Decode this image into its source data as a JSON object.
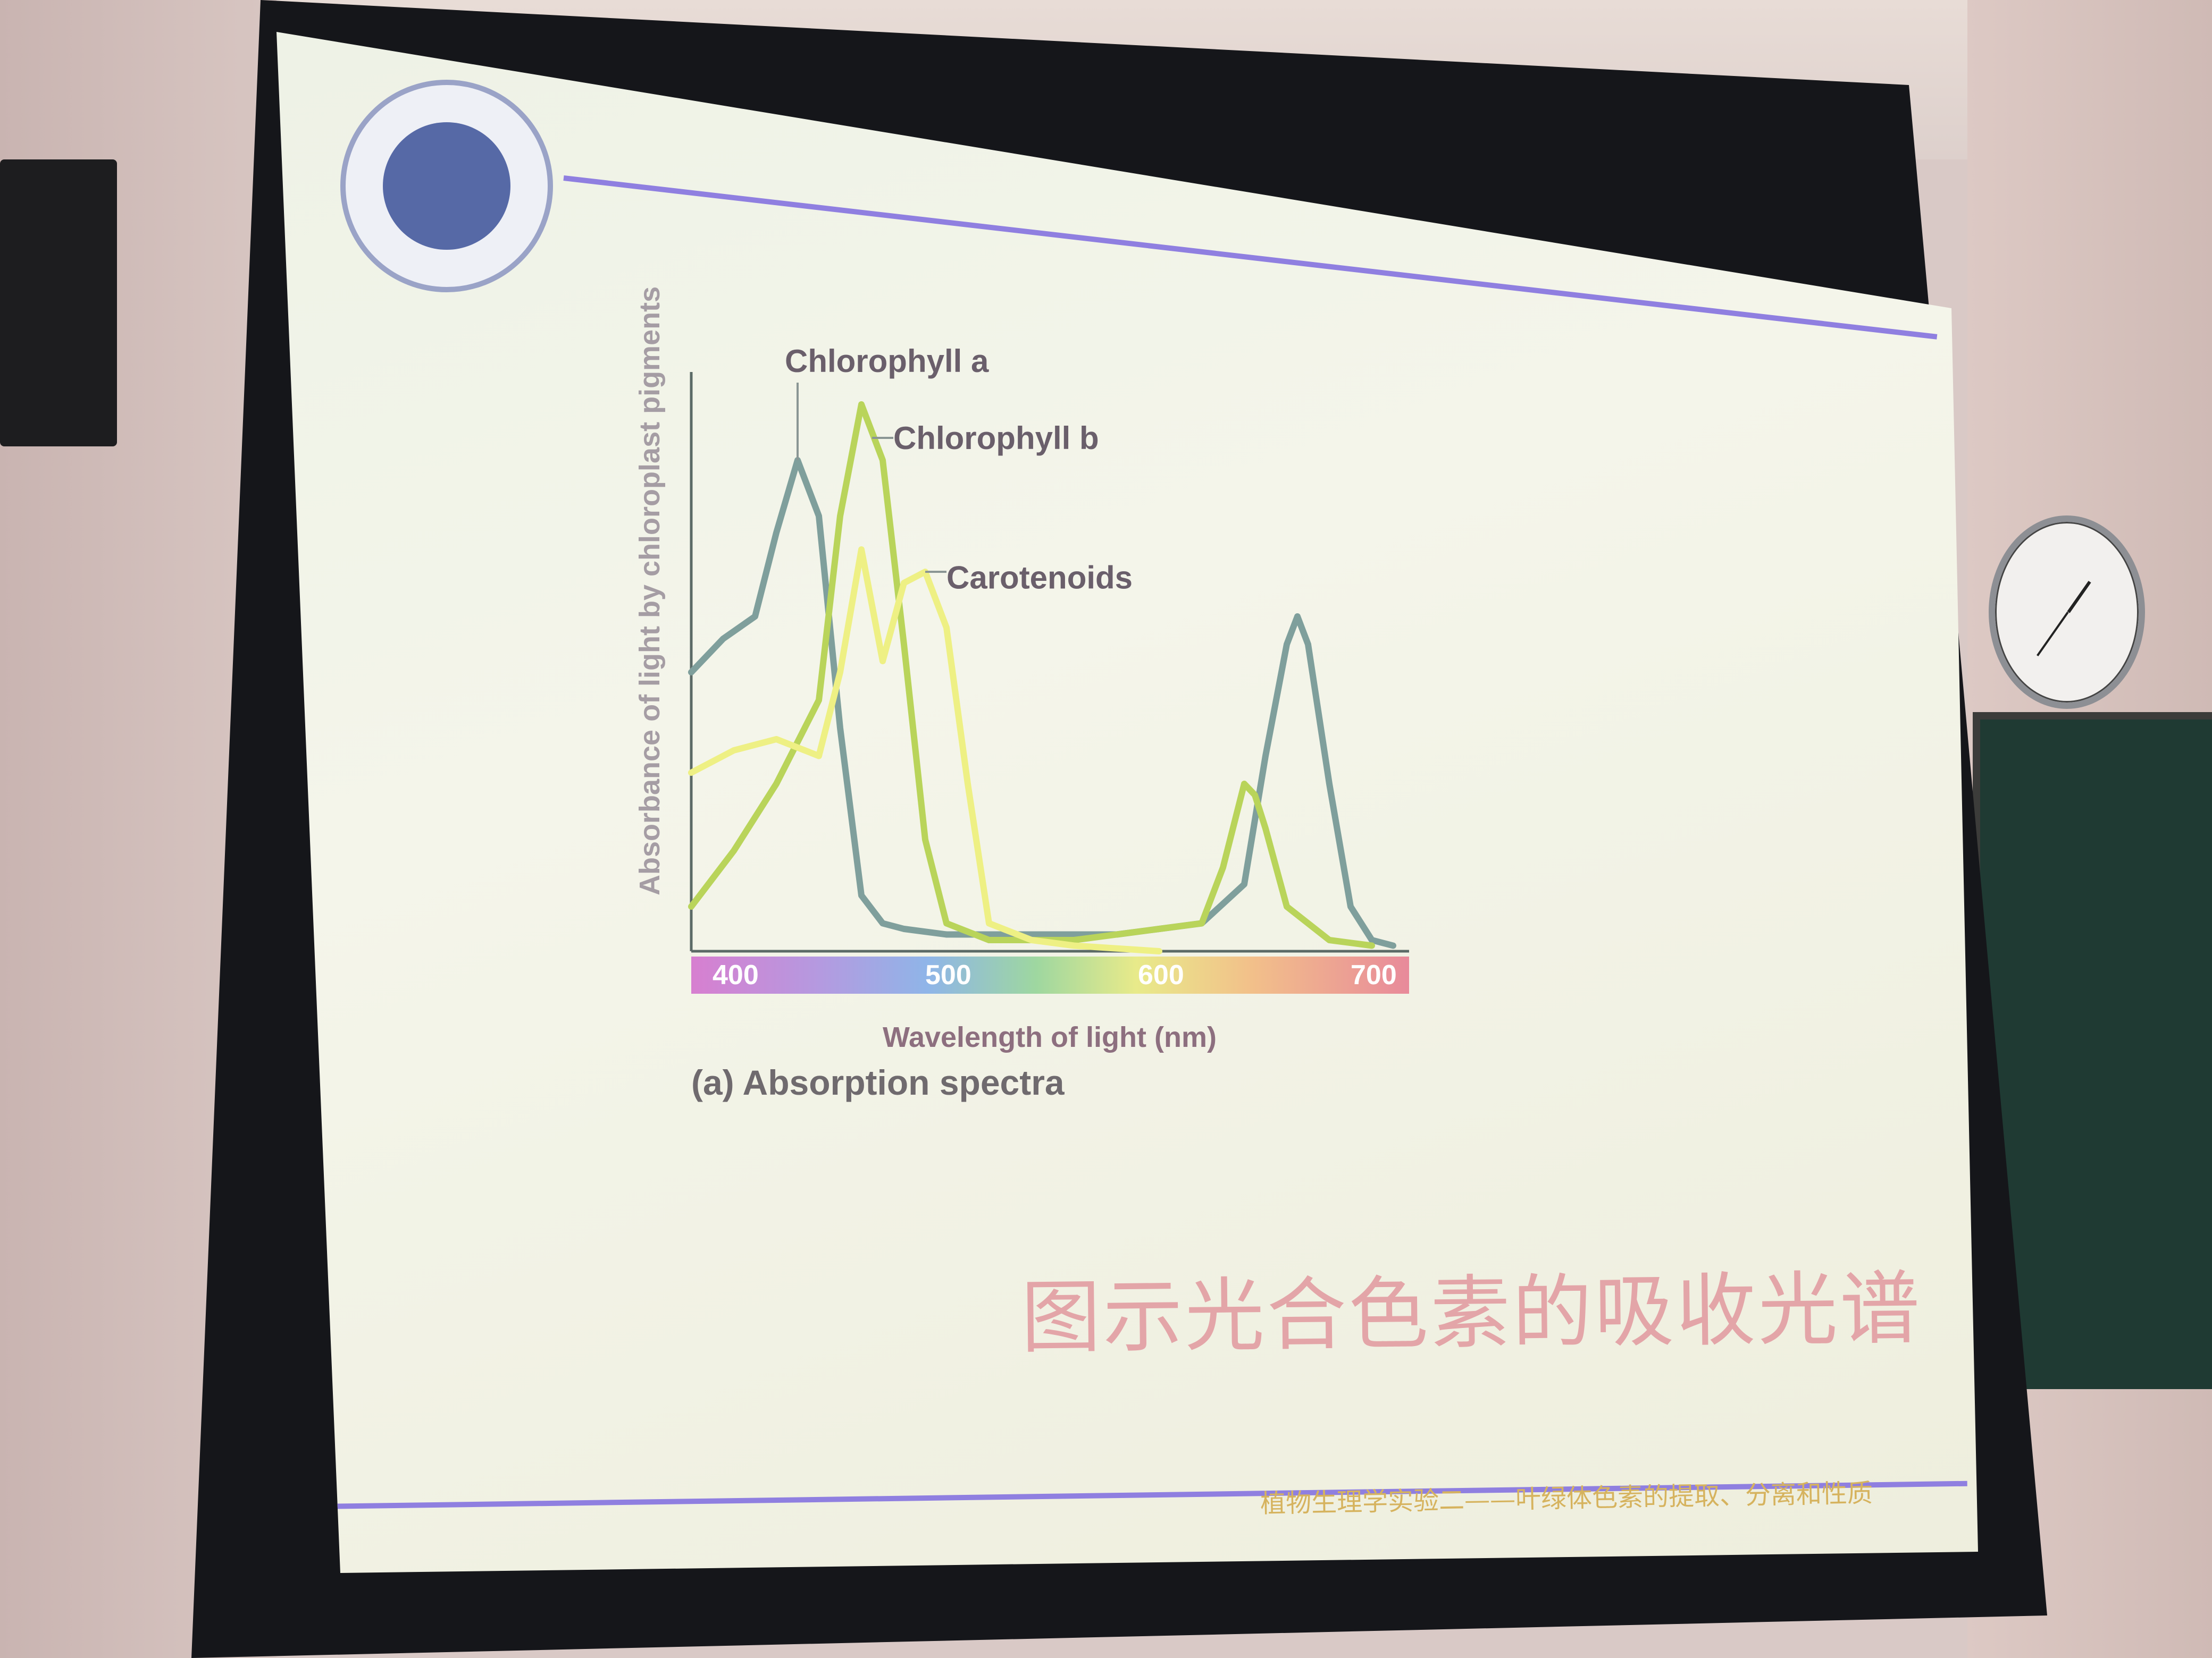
{
  "slide": {
    "title": "图示光合色素的吸收光谱",
    "footer": "植物生理学实验二——叶绿体色素的提取、分离和性质"
  },
  "colors": {
    "chlorophyll_a": "#7f9f9c",
    "chlorophyll_b": "#b9d45a",
    "carotenoids": "#eef084",
    "rule": "#8f7fe0",
    "title": "#e3a5a8",
    "footer": "#d6b35e"
  },
  "chart_data": {
    "type": "line",
    "panel_label": "(a) Absorption spectra",
    "xlabel": "Wavelength of light (nm)",
    "ylabel": "Absorbance of light by chloroplast pigments",
    "xlim": [
      380,
      710
    ],
    "ylim": [
      0,
      1
    ],
    "x_ticks": [
      400,
      500,
      600,
      700
    ],
    "grid": false,
    "legend": "labels on curves",
    "series": [
      {
        "name": "Chlorophyll a",
        "x": [
          380,
          395,
          410,
          420,
          430,
          440,
          450,
          460,
          470,
          480,
          500,
          540,
          580,
          600,
          620,
          640,
          650,
          660,
          665,
          670,
          680,
          690,
          700,
          710
        ],
        "y": [
          0.5,
          0.56,
          0.6,
          0.75,
          0.88,
          0.78,
          0.4,
          0.1,
          0.05,
          0.04,
          0.03,
          0.03,
          0.03,
          0.04,
          0.05,
          0.12,
          0.35,
          0.55,
          0.6,
          0.55,
          0.3,
          0.08,
          0.02,
          0.01
        ]
      },
      {
        "name": "Chlorophyll b",
        "x": [
          380,
          400,
          420,
          440,
          450,
          460,
          470,
          480,
          490,
          500,
          520,
          560,
          600,
          620,
          630,
          640,
          645,
          650,
          660,
          680,
          700
        ],
        "y": [
          0.08,
          0.18,
          0.3,
          0.45,
          0.78,
          0.98,
          0.88,
          0.55,
          0.2,
          0.05,
          0.02,
          0.02,
          0.04,
          0.05,
          0.15,
          0.3,
          0.28,
          0.22,
          0.08,
          0.02,
          0.01
        ]
      },
      {
        "name": "Carotenoids",
        "x": [
          380,
          400,
          420,
          440,
          450,
          460,
          470,
          480,
          490,
          500,
          510,
          520,
          540,
          560,
          600
        ],
        "y": [
          0.32,
          0.36,
          0.38,
          0.35,
          0.5,
          0.72,
          0.52,
          0.66,
          0.68,
          0.58,
          0.3,
          0.05,
          0.02,
          0.01,
          0.0
        ]
      }
    ]
  }
}
